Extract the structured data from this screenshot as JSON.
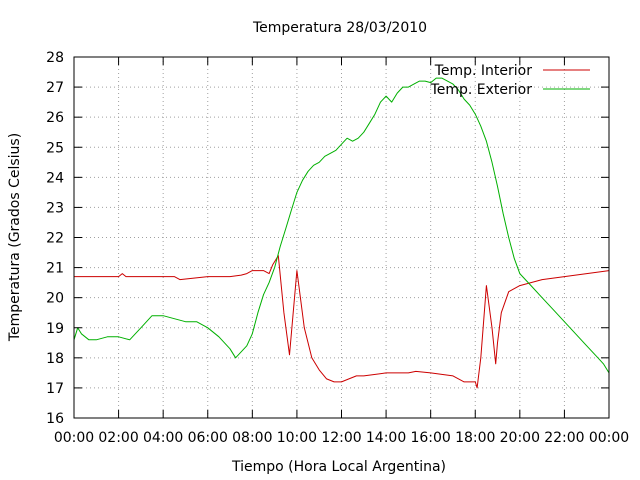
{
  "chart_data": {
    "type": "line",
    "title": "Temperatura 28/03/2010",
    "xlabel": "Tiempo (Hora Local Argentina)",
    "ylabel": "Temperatura (Grados Celsius)",
    "xlim": [
      "00:00",
      "24:00"
    ],
    "ylim": [
      16,
      28
    ],
    "x_ticks": [
      "00:00",
      "02:00",
      "04:00",
      "06:00",
      "08:00",
      "10:00",
      "12:00",
      "14:00",
      "16:00",
      "18:00",
      "20:00",
      "22:00",
      "00:00"
    ],
    "y_ticks": [
      16,
      17,
      18,
      19,
      20,
      21,
      22,
      23,
      24,
      25,
      26,
      27,
      28
    ],
    "grid": true,
    "legend_position": "top-right",
    "series": [
      {
        "name": "Temp. Interior",
        "color": "#cc0000",
        "x": [
          "00:00",
          "02:00",
          "02:10",
          "02:20",
          "04:00",
          "04:30",
          "04:45",
          "06:00",
          "07:00",
          "07:30",
          "07:45",
          "08:00",
          "08:30",
          "08:45",
          "08:55",
          "09:10",
          "09:25",
          "09:40",
          "09:50",
          "10:00",
          "10:20",
          "10:40",
          "11:00",
          "11:20",
          "11:40",
          "12:00",
          "12:20",
          "12:40",
          "13:00",
          "14:00",
          "15:00",
          "15:20",
          "16:00",
          "16:30",
          "17:00",
          "17:30",
          "18:00",
          "18:05",
          "18:15",
          "18:30",
          "18:45",
          "18:55",
          "19:00",
          "19:10",
          "19:30",
          "20:00",
          "20:30",
          "21:00",
          "22:00",
          "23:00",
          "24:00"
        ],
        "y": [
          20.7,
          20.7,
          20.8,
          20.7,
          20.7,
          20.7,
          20.6,
          20.7,
          20.7,
          20.75,
          20.8,
          20.9,
          20.9,
          20.8,
          21.1,
          21.4,
          19.5,
          18.1,
          19.5,
          20.9,
          19.0,
          18.0,
          17.6,
          17.3,
          17.2,
          17.2,
          17.3,
          17.4,
          17.4,
          17.5,
          17.5,
          17.55,
          17.5,
          17.45,
          17.4,
          17.2,
          17.2,
          17.0,
          18.0,
          20.4,
          19.0,
          17.8,
          18.5,
          19.5,
          20.2,
          20.4,
          20.5,
          20.6,
          20.7,
          20.8,
          20.9
        ]
      },
      {
        "name": "Temp. Exterior",
        "color": "#00b000",
        "x": [
          "00:00",
          "00:10",
          "00:20",
          "00:40",
          "01:00",
          "01:30",
          "02:00",
          "02:30",
          "03:00",
          "03:30",
          "04:00",
          "04:30",
          "05:00",
          "05:30",
          "06:00",
          "06:30",
          "07:00",
          "07:15",
          "07:30",
          "07:45",
          "08:00",
          "08:15",
          "08:30",
          "08:45",
          "09:00",
          "09:15",
          "09:30",
          "09:45",
          "10:00",
          "10:15",
          "10:30",
          "10:45",
          "11:00",
          "11:15",
          "11:30",
          "11:45",
          "12:00",
          "12:15",
          "12:30",
          "12:45",
          "13:00",
          "13:15",
          "13:30",
          "13:45",
          "14:00",
          "14:15",
          "14:30",
          "14:45",
          "15:00",
          "15:15",
          "15:30",
          "15:45",
          "16:00",
          "16:15",
          "16:30",
          "16:45",
          "17:00",
          "17:15",
          "17:30",
          "17:45",
          "18:00",
          "18:15",
          "18:30",
          "18:45",
          "19:00",
          "19:15",
          "19:30",
          "19:45",
          "20:00",
          "20:15",
          "20:30",
          "21:00",
          "21:30",
          "22:00",
          "22:30",
          "23:00",
          "23:30",
          "23:45",
          "24:00"
        ],
        "y": [
          18.6,
          19.0,
          18.8,
          18.6,
          18.6,
          18.7,
          18.7,
          18.6,
          19.0,
          19.4,
          19.4,
          19.3,
          19.2,
          19.2,
          19.0,
          18.7,
          18.3,
          18.0,
          18.2,
          18.4,
          18.8,
          19.5,
          20.1,
          20.5,
          21.0,
          21.7,
          22.3,
          22.9,
          23.5,
          23.9,
          24.2,
          24.4,
          24.5,
          24.7,
          24.8,
          24.9,
          25.1,
          25.3,
          25.2,
          25.3,
          25.5,
          25.8,
          26.1,
          26.5,
          26.7,
          26.5,
          26.8,
          27.0,
          27.0,
          27.1,
          27.2,
          27.2,
          27.15,
          27.3,
          27.3,
          27.2,
          27.1,
          26.9,
          26.6,
          26.4,
          26.1,
          25.7,
          25.2,
          24.5,
          23.7,
          22.8,
          22.0,
          21.3,
          20.8,
          20.6,
          20.4,
          20.0,
          19.6,
          19.2,
          18.8,
          18.4,
          18.0,
          17.8,
          17.5
        ]
      }
    ]
  }
}
